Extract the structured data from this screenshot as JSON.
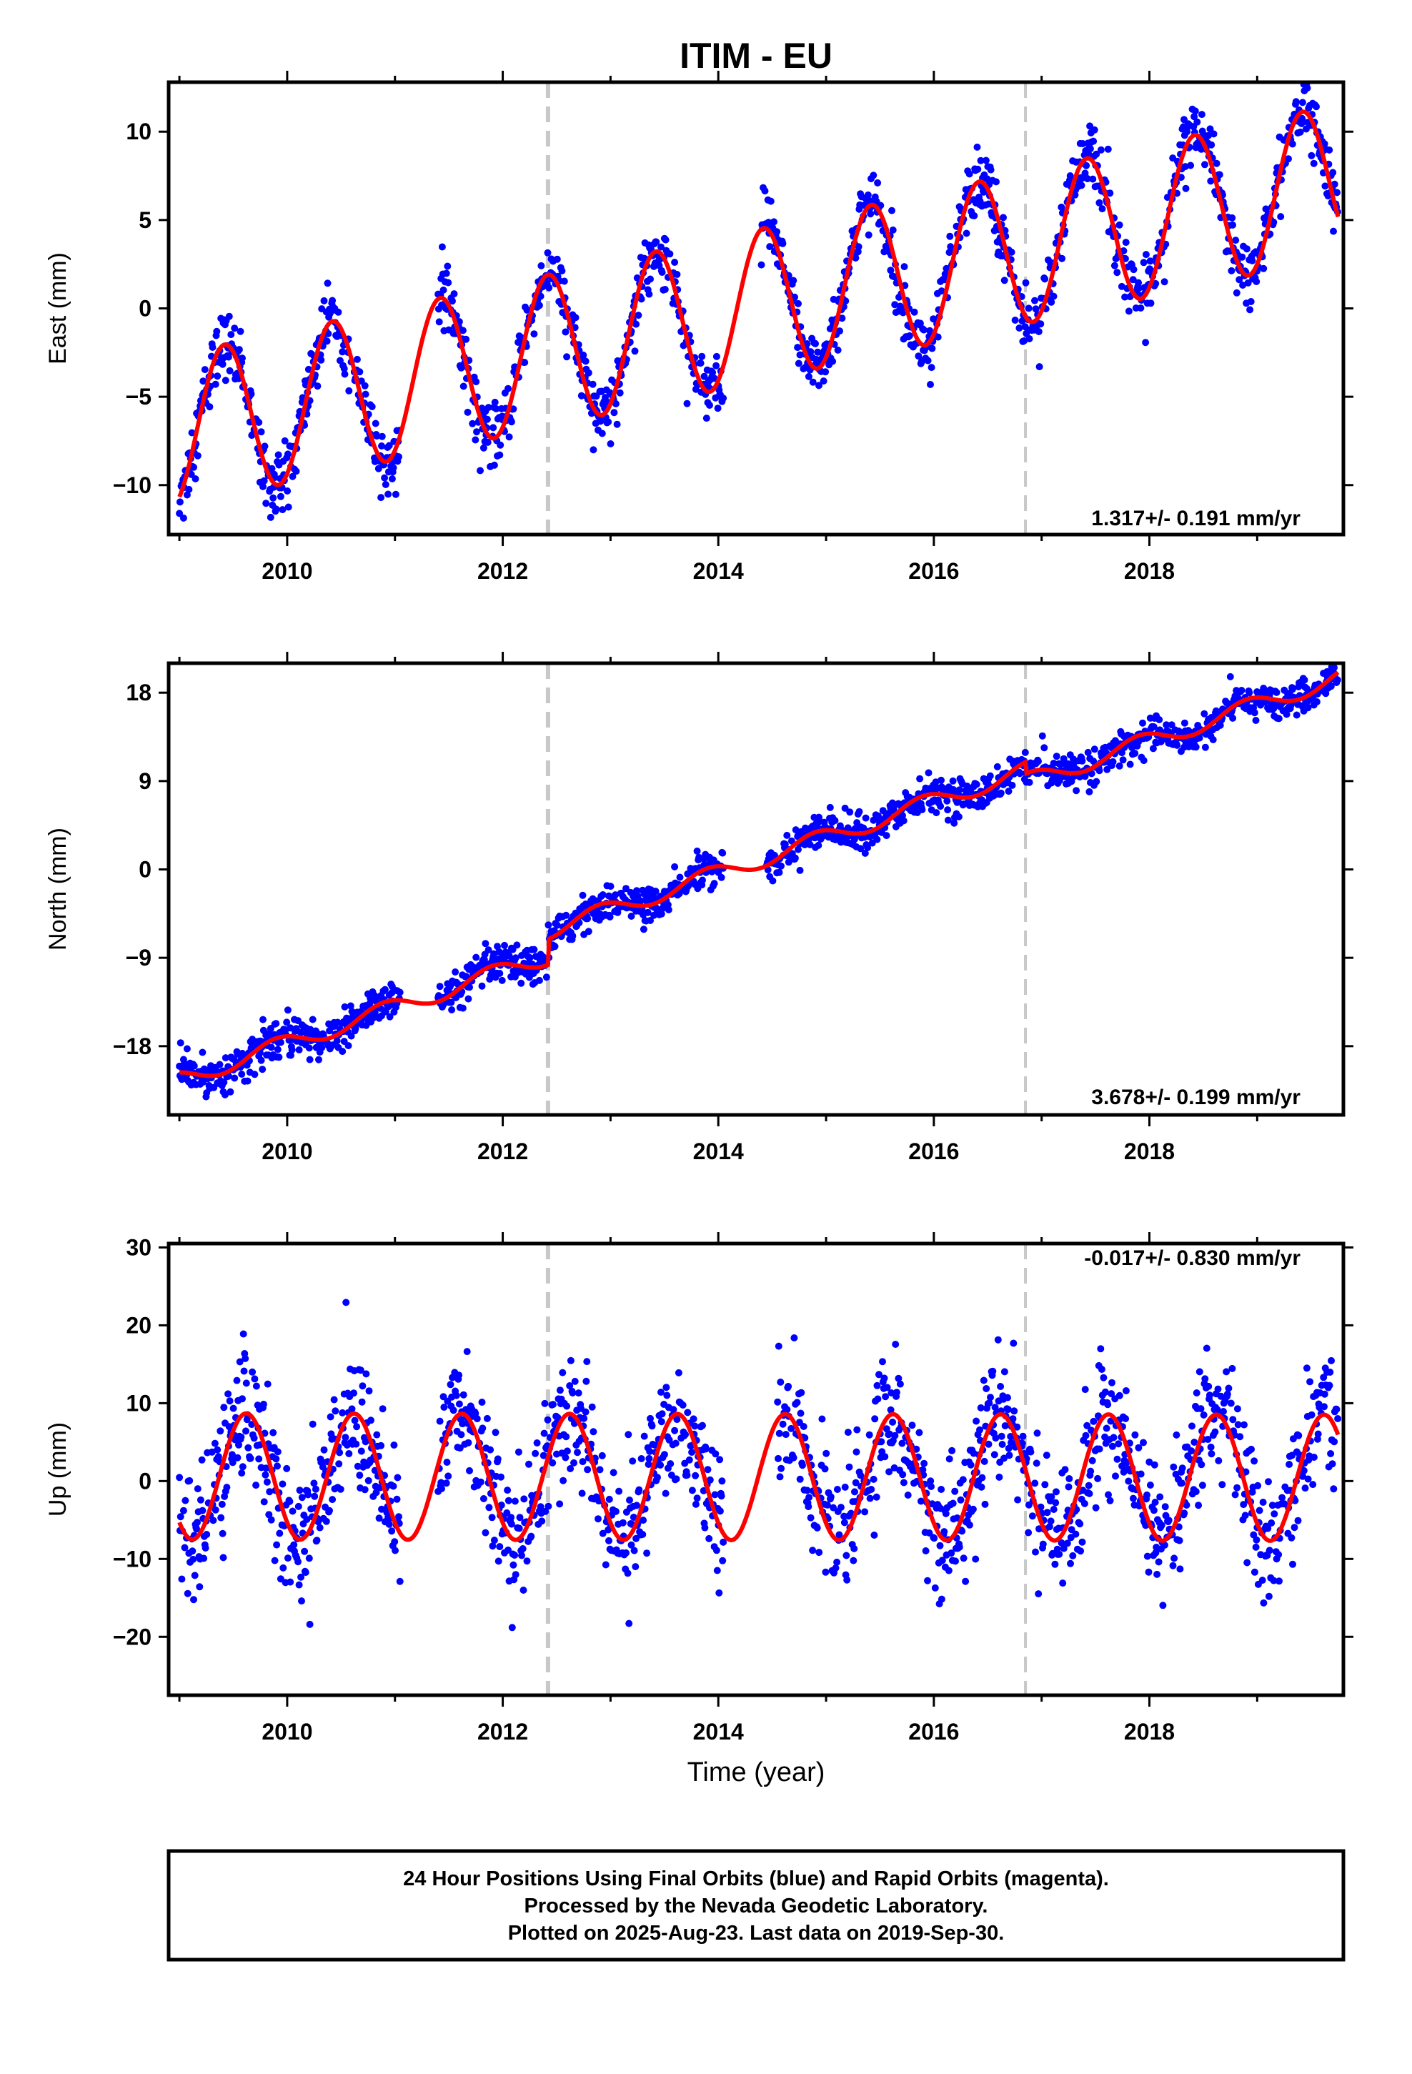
{
  "chart_data": {
    "type": "scatter",
    "title": "ITIM - EU",
    "xlabel": "Time (year)",
    "xlim": [
      2008.9,
      2019.8
    ],
    "x_ticks": [
      "2010",
      "2012",
      "2014",
      "2016",
      "2018"
    ],
    "grid": false,
    "legend": "none",
    "point_color": "#0000ff",
    "model_color": "#ff0000",
    "offset_line_color": "#c8c8c8",
    "offsets": [
      2012.42,
      2016.85
    ],
    "panels": [
      {
        "ylabel": "East (mm)",
        "ylim": [
          -12.8,
          12.8
        ],
        "y_ticks": [
          "10",
          "5",
          "0",
          "−5",
          "−10"
        ],
        "rate_label": "1.317+/- 0.191 mm/yr",
        "model": {
          "trend": {
            "t0": 2009.0,
            "v0": -6.9,
            "rate": 1.317
          },
          "annual_amp": 4.3,
          "peak": 0.42,
          "steps": []
        },
        "data_ranges": [
          [
            2009.0,
            2011.05
          ],
          [
            2011.4,
            2014.05
          ],
          [
            2014.4,
            2019.75
          ]
        ],
        "scatter_sd": 0.9
      },
      {
        "ylabel": "North (mm)",
        "ylim": [
          -25.0,
          21.0
        ],
        "y_ticks": [
          "18",
          "9",
          "0",
          "−9",
          "−18"
        ],
        "rate_label": "3.678+/- 0.199 mm/yr",
        "model": {
          "trend": {
            "t0": 2009.0,
            "v0": -21.4,
            "rate": 3.678
          },
          "annual_amp": 0.9,
          "peak": 0.9,
          "steps": [
            [
              2012.42,
              2.6
            ],
            [
              2016.85,
              -1.2
            ]
          ]
        },
        "data_ranges": [
          [
            2009.0,
            2011.05
          ],
          [
            2011.4,
            2014.05
          ],
          [
            2014.45,
            2019.75
          ]
        ],
        "scatter_sd": 0.9
      },
      {
        "ylabel": "Up (mm)",
        "ylim": [
          -27.5,
          30.5
        ],
        "y_ticks": [
          "30",
          "20",
          "10",
          "0",
          "−10",
          "−20"
        ],
        "rate_label": "-0.017+/- 0.830 mm/yr",
        "model": {
          "trend": {
            "t0": 2009.0,
            "v0": 0.6,
            "rate": -0.017
          },
          "annual_amp": 8.1,
          "peak": 0.62,
          "steps": []
        },
        "data_ranges": [
          [
            2009.0,
            2011.05
          ],
          [
            2011.4,
            2014.05
          ],
          [
            2014.55,
            2019.75
          ]
        ],
        "scatter_sd": 4.0
      }
    ]
  },
  "footer": {
    "line1": "24 Hour Positions Using Final Orbits (blue) and Rapid Orbits (magenta).",
    "line2": "Processed by the Nevada Geodetic Laboratory.",
    "line3": "Plotted on 2025-Aug-23. Last data on 2019-Sep-30."
  }
}
